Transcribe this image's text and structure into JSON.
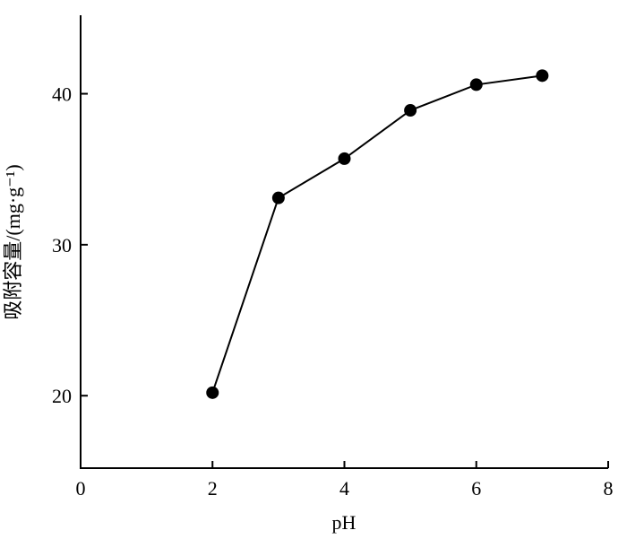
{
  "chart_data": {
    "type": "line",
    "x_label": "pH",
    "y_label": "吸附容量/(mg·g⁻¹)",
    "x": [
      2,
      3,
      4,
      5,
      6,
      7
    ],
    "series": [
      {
        "color": "#000000",
        "values": [
          20.2,
          33.1,
          35.7,
          38.9,
          40.6,
          41.2
        ]
      }
    ],
    "xlim": [
      0,
      8
    ],
    "xticks": [
      0,
      2,
      4,
      6,
      8
    ],
    "ylim": [
      15.2,
      45.2
    ],
    "yticks": [
      20,
      30,
      40
    ],
    "grid": false,
    "markers": true
  }
}
